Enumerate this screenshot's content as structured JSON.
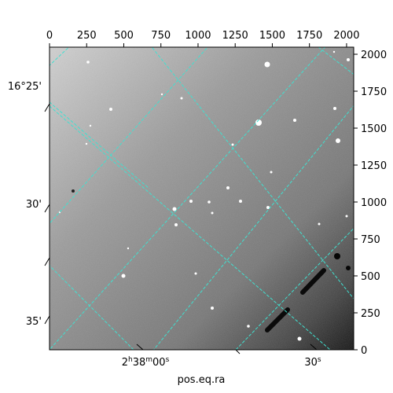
{
  "chart_data": {
    "type": "image",
    "title": "",
    "xlabel": "pos.eq.ra",
    "ylabel": "",
    "pixel_axes": {
      "x_range": [
        0,
        2048
      ],
      "y_range": [
        0,
        2048
      ],
      "x_ticks": [
        0,
        250,
        500,
        750,
        1000,
        1250,
        1500,
        1750,
        2000
      ],
      "y_ticks": [
        0,
        250,
        500,
        750,
        1000,
        1250,
        1500,
        1750,
        2000
      ]
    },
    "ra_tick_labels": [
      {
        "h": "2",
        "m": "38",
        "s": "00",
        "text": "2h38m00s"
      },
      {
        "s": "30",
        "text": "30s"
      }
    ],
    "dec_tick_labels": [
      "16°25'",
      "30'",
      "35'"
    ],
    "grid": true,
    "grid_color": "#40e0d0",
    "image_colormap": "grayscale",
    "image_gradient": "bright top-left, dark bottom-right",
    "notable_features": [
      "bright stars scattered",
      "dark saturated trails near bottom-right"
    ]
  }
}
